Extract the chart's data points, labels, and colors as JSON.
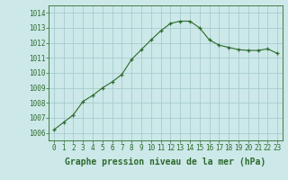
{
  "x": [
    0,
    1,
    2,
    3,
    4,
    5,
    6,
    7,
    8,
    9,
    10,
    11,
    12,
    13,
    14,
    15,
    16,
    17,
    18,
    19,
    20,
    21,
    22,
    23
  ],
  "y": [
    1006.2,
    1006.7,
    1007.2,
    1008.1,
    1008.5,
    1009.0,
    1009.4,
    1009.9,
    1010.9,
    1011.55,
    1012.2,
    1012.8,
    1013.3,
    1013.45,
    1013.45,
    1013.0,
    1012.2,
    1011.85,
    1011.7,
    1011.55,
    1011.5,
    1011.5,
    1011.6,
    1011.3
  ],
  "line_color": "#2d6a2d",
  "marker": "+",
  "marker_color": "#2d6a2d",
  "bg_color": "#cce8e8",
  "grid_color": "#a0c8c8",
  "xlabel": "Graphe pression niveau de la mer (hPa)",
  "xlabel_fontsize": 7,
  "xlabel_color": "#2d6a2d",
  "ylabel_ticks": [
    1006,
    1007,
    1008,
    1009,
    1010,
    1011,
    1012,
    1013,
    1014
  ],
  "xlim": [
    -0.5,
    23.5
  ],
  "ylim": [
    1005.5,
    1014.5
  ],
  "xtick_labels": [
    "0",
    "1",
    "2",
    "3",
    "4",
    "5",
    "6",
    "7",
    "8",
    "9",
    "10",
    "11",
    "12",
    "13",
    "14",
    "15",
    "16",
    "17",
    "18",
    "19",
    "20",
    "21",
    "22",
    "23"
  ],
  "tick_color": "#2d6a2d",
  "tick_fontsize": 5.5,
  "border_color": "#2d6a2d",
  "linewidth": 0.8,
  "markersize": 3.5,
  "markeredgewidth": 0.9
}
